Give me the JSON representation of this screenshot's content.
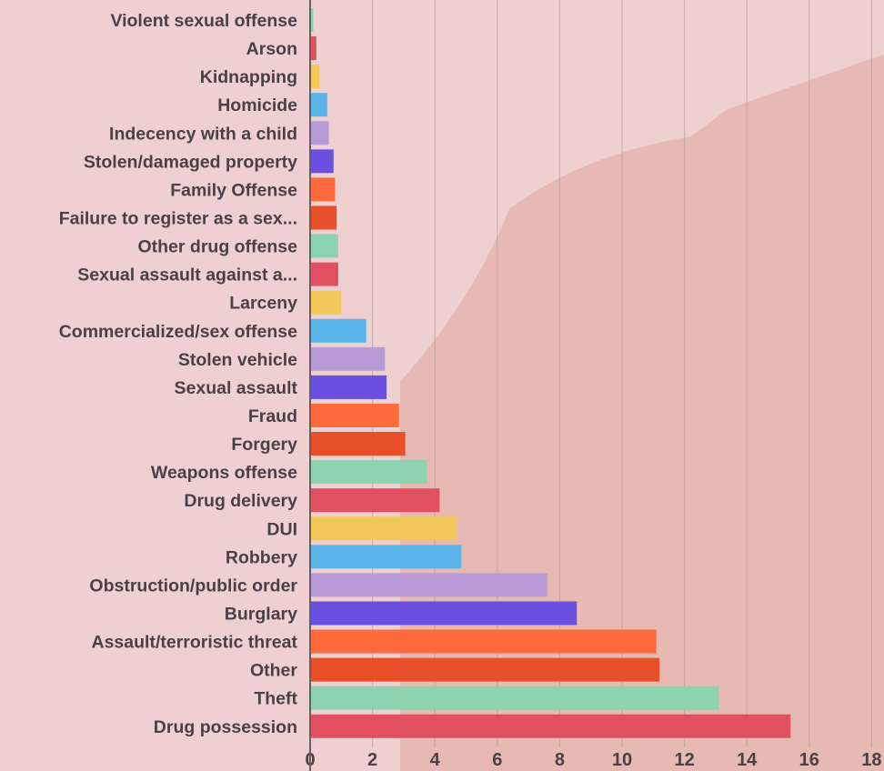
{
  "chart_data": {
    "type": "bar",
    "orientation": "horizontal",
    "title": "",
    "xlabel": "",
    "ylabel": "",
    "xlim": [
      0,
      18
    ],
    "x_ticks": [
      "0",
      "2",
      "4",
      "6",
      "8",
      "10",
      "12",
      "14",
      "16",
      "18"
    ],
    "grid": "vertical",
    "categories": [
      "Violent sexual offense",
      "Arson",
      "Kidnapping",
      "Homicide",
      "Indecency with a child",
      "Stolen/damaged property",
      "Family Offense",
      "Failure to register as a sex...",
      "Other drug offense",
      "Sexual assault against a...",
      "Larceny",
      "Commercialized/sex offense",
      "Stolen vehicle",
      "Sexual assault",
      "Fraud",
      "Forgery",
      "Weapons offense",
      "Drug delivery",
      "DUI",
      "Robbery",
      "Obstruction/public order",
      "Burglary",
      "Assault/terroristic threat",
      "Other",
      "Theft",
      "Drug possession"
    ],
    "values": [
      0.1,
      0.2,
      0.3,
      0.55,
      0.6,
      0.75,
      0.8,
      0.85,
      0.9,
      0.9,
      1.0,
      1.8,
      2.4,
      2.45,
      2.85,
      3.05,
      3.75,
      4.15,
      4.7,
      4.85,
      7.6,
      8.55,
      11.1,
      11.2,
      13.1,
      15.4
    ],
    "colors": [
      "#8dd3b0",
      "#e05060",
      "#f0c85a",
      "#5ab4ea",
      "#b89ad6",
      "#6a4fe0",
      "#ff6a3c",
      "#e8502a"
    ]
  }
}
